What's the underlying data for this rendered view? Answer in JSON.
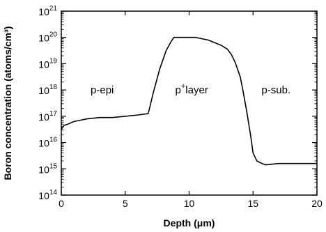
{
  "chart_data": {
    "type": "line",
    "title": "",
    "xlabel": "Depth (μm)",
    "ylabel": "Boron concentration (atoms/cm³)",
    "xlim": [
      0,
      20
    ],
    "ylim_log10": [
      14,
      21
    ],
    "yscale": "log",
    "grid": false,
    "x_ticks": [
      0,
      5,
      10,
      15,
      20
    ],
    "y_ticks_exponents": [
      14,
      15,
      16,
      17,
      18,
      19,
      20,
      21
    ],
    "line_color": "#000000",
    "series": [
      {
        "x": [
          0,
          0.2,
          0.5,
          1,
          2,
          3,
          4,
          5,
          6,
          6.8,
          7.2,
          7.7,
          8.2,
          8.6,
          8.8,
          9,
          9.5,
          10,
          10.5,
          11,
          11.5,
          12,
          12.5,
          13,
          13.3,
          13.6,
          14,
          14.2,
          14.5,
          14.8,
          15,
          15.3,
          15.7,
          16,
          17,
          18,
          19,
          20
        ],
        "y_log10": [
          16.5,
          16.65,
          16.7,
          16.8,
          16.9,
          16.95,
          16.95,
          17.0,
          17.05,
          17.1,
          17.9,
          18.8,
          19.5,
          19.85,
          20.0,
          20.0,
          20.0,
          20.0,
          20.0,
          19.95,
          19.9,
          19.8,
          19.7,
          19.55,
          19.35,
          19.05,
          18.5,
          18.0,
          17.2,
          16.3,
          15.6,
          15.3,
          15.2,
          15.15,
          15.2,
          15.2,
          15.2,
          15.2
        ]
      }
    ],
    "annotations": [
      {
        "text": "p-epi",
        "x": 3.2,
        "y_log10": 18
      },
      {
        "text_base": "p",
        "text_sup": "+",
        "text_rest": "layer",
        "x": 10.2,
        "y_log10": 18
      },
      {
        "text": "p-sub.",
        "x": 16.8,
        "y_log10": 18
      }
    ]
  }
}
